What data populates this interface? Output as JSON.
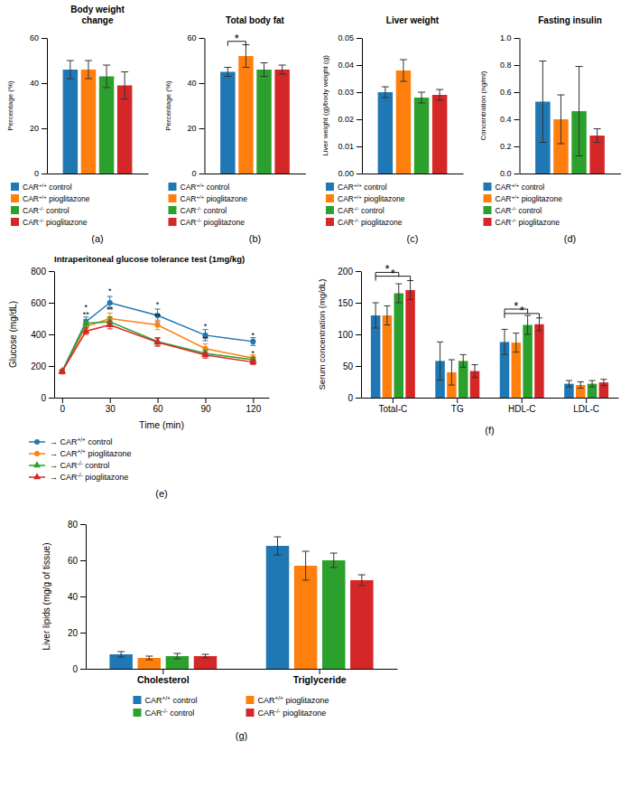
{
  "chart_data": [
    {
      "type": "bar",
      "title": "Body weight\nchange",
      "ylabel": "Percentage (%)",
      "categories": [
        null
      ],
      "series": [
        {
          "name": "CAR+/+ control",
          "values": [
            46
          ],
          "errors": [
            4
          ]
        },
        {
          "name": "CAR+/+ pioglitazone",
          "values": [
            46
          ],
          "errors": [
            4
          ]
        },
        {
          "name": "CAR-/- control",
          "values": [
            43
          ],
          "errors": [
            5
          ]
        },
        {
          "name": "CAR-/- pioglitazone",
          "values": [
            39
          ],
          "errors": [
            6
          ]
        }
      ],
      "ylim": [
        0,
        60
      ],
      "yticks": [
        0,
        20,
        40,
        60
      ],
      "tick_labels": "y",
      "legend": "bottom",
      "annotations": [
        {
          "text": "(a)"
        }
      ]
    },
    {
      "type": "bar",
      "title": "Total body fat",
      "ylabel": "Percentage (%)",
      "categories": [
        null
      ],
      "series": [
        {
          "name": "CAR+/+ control",
          "values": [
            45
          ],
          "errors": [
            2
          ]
        },
        {
          "name": "CAR+/+ pioglitazone",
          "values": [
            52
          ],
          "errors": [
            5
          ]
        },
        {
          "name": "CAR-/- control",
          "values": [
            46
          ],
          "errors": [
            3
          ]
        },
        {
          "name": "CAR-/- pioglitazone",
          "values": [
            46
          ],
          "errors": [
            2
          ]
        }
      ],
      "ylim": [
        0,
        60
      ],
      "yticks": [
        0,
        20,
        40,
        60
      ],
      "tick_labels": "y",
      "legend": "bottom",
      "annotations": [
        {
          "text": "*",
          "series": [
            0,
            1
          ],
          "y": 58.5
        },
        {
          "text": "(b)"
        }
      ]
    },
    {
      "type": "bar",
      "title": "Liver weight",
      "ylabel": "Liver weight (g)/body weight (g)",
      "categories": [
        null
      ],
      "series": [
        {
          "name": "CAR+/+ control",
          "values": [
            0.03
          ],
          "errors": [
            0.002
          ]
        },
        {
          "name": "CAR+/+ pioglitazone",
          "values": [
            0.038
          ],
          "errors": [
            0.004
          ]
        },
        {
          "name": "CAR-/- control",
          "values": [
            0.028
          ],
          "errors": [
            0.002
          ]
        },
        {
          "name": "CAR-/- pioglitazone",
          "values": [
            0.029
          ],
          "errors": [
            0.002
          ]
        }
      ],
      "ylim": [
        0,
        0.05
      ],
      "yticks": [
        {
          "value": 0,
          "label": "0.00"
        },
        0.01,
        0.02,
        0.03,
        0.04,
        0.05
      ],
      "tick_labels": "y",
      "legend": "bottom",
      "annotations": [
        {
          "text": "(c)"
        }
      ]
    },
    {
      "type": "bar",
      "title": "Fasting insulin",
      "ylabel": "Concentration (ng/ml)",
      "categories": [
        null
      ],
      "series": [
        {
          "name": "CAR+/+ control",
          "values": [
            0.53
          ],
          "errors": [
            0.3
          ]
        },
        {
          "name": "CAR+/+ pioglitazone",
          "values": [
            0.4
          ],
          "errors": [
            0.18
          ]
        },
        {
          "name": "CAR-/- control",
          "values": [
            0.46
          ],
          "errors": [
            0.33
          ]
        },
        {
          "name": "CAR-/- pioglitazone",
          "values": [
            0.28
          ],
          "errors": [
            0.05
          ]
        }
      ],
      "ylim": [
        0,
        1
      ],
      "yticks": [
        {
          "value": 0,
          "label": "0.0"
        },
        0.2,
        0.4,
        0.6,
        0.8,
        {
          "value": 1,
          "label": "1.0"
        }
      ],
      "tick_labels": "y",
      "legend": "bottom",
      "annotations": [
        {
          "text": "(d)"
        }
      ]
    },
    {
      "type": "line",
      "title": "Intraperitoneal glucose tolerance test (1mg/kg)",
      "xlabel": "Time (min)",
      "ylabel": "Glucose (mg/dL)",
      "x": [
        0,
        15,
        30,
        60,
        90,
        120
      ],
      "series": [
        {
          "name": "→ CAR+/+ control",
          "marker": "circle",
          "values": [
            165,
            480,
            600,
            520,
            395,
            355
          ],
          "errors": [
            10,
            30,
            40,
            40,
            35,
            25
          ]
        },
        {
          "name": "→ CAR+/+ pioglitazone",
          "marker": "circle",
          "values": [
            165,
            450,
            500,
            460,
            310,
            250
          ],
          "errors": [
            10,
            25,
            35,
            30,
            30,
            20
          ]
        },
        {
          "name": "→ CAR-/- control",
          "marker": "triangle",
          "values": [
            165,
            470,
            480,
            355,
            280,
            240
          ],
          "errors": [
            10,
            25,
            30,
            25,
            20,
            15
          ]
        },
        {
          "name": "→ CAR-/- pioglitazone",
          "marker": "triangle",
          "values": [
            165,
            420,
            460,
            350,
            270,
            225
          ],
          "errors": [
            10,
            20,
            25,
            25,
            20,
            15
          ]
        }
      ],
      "xlim": [
        -5,
        130
      ],
      "xticks": [
        0,
        30,
        60,
        90,
        120
      ],
      "ylim": [
        0,
        800
      ],
      "yticks": [
        0,
        200,
        400,
        600,
        800
      ],
      "legend": "bottom",
      "annotations": [
        {
          "text": "*",
          "x": 15,
          "y": 555
        },
        {
          "text": "**",
          "x": 15,
          "y": 510
        },
        {
          "text": "*",
          "x": 30,
          "y": 660
        },
        {
          "text": "**",
          "x": 30,
          "y": 545
        },
        {
          "text": "*",
          "x": 60,
          "y": 570
        },
        {
          "text": "**",
          "x": 60,
          "y": 498
        },
        {
          "text": "*",
          "x": 90,
          "y": 435
        },
        {
          "text": "**",
          "x": 90,
          "y": 355
        },
        {
          "text": "*",
          "x": 120,
          "y": 378
        },
        {
          "text": "*",
          "x": 120,
          "y": 265
        },
        {
          "text": "(e)"
        }
      ]
    },
    {
      "type": "bar",
      "ylabel": "Serum concentration (mg/dL)",
      "categories": [
        "Total-C",
        "TG",
        "HDL-C",
        "LDL-C"
      ],
      "series": [
        {
          "values": [
            130,
            58,
            88,
            22
          ],
          "errors": [
            20,
            30,
            20,
            5
          ]
        },
        {
          "values": [
            130,
            40,
            87,
            20
          ],
          "errors": [
            15,
            20,
            15,
            5
          ]
        },
        {
          "values": [
            165,
            58,
            115,
            22
          ],
          "errors": [
            15,
            10,
            15,
            5
          ]
        },
        {
          "values": [
            170,
            42,
            116,
            24
          ],
          "errors": [
            15,
            10,
            10,
            5
          ]
        }
      ],
      "ylim": [
        0,
        200
      ],
      "yticks": [
        0,
        50,
        100,
        150,
        200
      ],
      "annotations": [
        {
          "text": "*",
          "category": 0,
          "series": [
            0,
            2
          ],
          "y": 198
        },
        {
          "text": "*",
          "category": 0,
          "series": [
            0,
            3
          ],
          "y": 192
        },
        {
          "text": "*",
          "category": 2,
          "series": [
            0,
            2
          ],
          "y": 140
        },
        {
          "text": "*",
          "category": 2,
          "series": [
            0,
            3
          ],
          "y": 133
        },
        {
          "text": "(f)"
        }
      ]
    },
    {
      "type": "bar",
      "ylabel": "Liver lipids (mg/g of tissue)",
      "categories": [
        "Cholesterol",
        "Triglyceride"
      ],
      "series": [
        {
          "name": "CAR+/+ control",
          "values": [
            8,
            68
          ],
          "errors": [
            1.5,
            5
          ]
        },
        {
          "name": "CAR+/+ pioglitazone",
          "values": [
            6,
            57
          ],
          "errors": [
            1.0,
            8
          ]
        },
        {
          "name": "CAR-/- control",
          "values": [
            7,
            60
          ],
          "errors": [
            1.5,
            4
          ]
        },
        {
          "name": "CAR-/- pioglitazone",
          "values": [
            7,
            49
          ],
          "errors": [
            1.0,
            3
          ]
        }
      ],
      "ylim": [
        0,
        80
      ],
      "yticks": [
        0,
        20,
        40,
        60,
        80
      ],
      "legend": "bottom",
      "annotations": [
        {
          "text": "(g)"
        }
      ]
    }
  ]
}
